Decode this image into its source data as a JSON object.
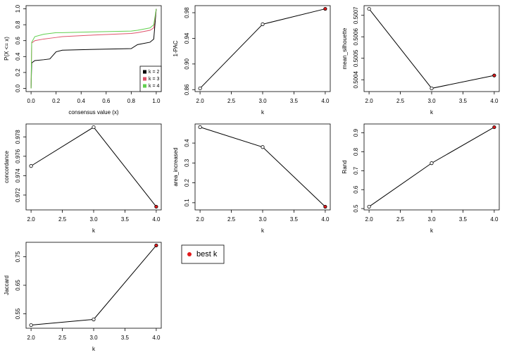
{
  "chart_data": [
    {
      "type": "line",
      "xlabel": "consensus value (x)",
      "ylabel": "P(X <= x)",
      "x": [
        0,
        0.005,
        0.03,
        0.1,
        0.15,
        0.2,
        0.25,
        0.5,
        0.8,
        0.85,
        0.95,
        0.98,
        1.0
      ],
      "series": [
        {
          "name": "k = 2",
          "color": "#000000",
          "values": [
            0,
            0.32,
            0.35,
            0.36,
            0.37,
            0.46,
            0.48,
            0.49,
            0.5,
            0.55,
            0.58,
            0.62,
            1.0
          ]
        },
        {
          "name": "k = 3",
          "color": "#df536b",
          "values": [
            0,
            0.57,
            0.6,
            0.62,
            0.63,
            0.64,
            0.65,
            0.67,
            0.69,
            0.7,
            0.73,
            0.76,
            1.0
          ]
        },
        {
          "name": "k = 4",
          "color": "#61d04f",
          "values": [
            0,
            0.58,
            0.65,
            0.68,
            0.69,
            0.7,
            0.7,
            0.71,
            0.72,
            0.73,
            0.76,
            0.8,
            1.0
          ]
        }
      ],
      "xlim": [
        -0.04,
        1.04
      ],
      "ylim": [
        -0.04,
        1.04
      ],
      "xticks": [
        {
          "value": 0,
          "label": "0.0"
        },
        0.2,
        0.4,
        0.6,
        0.8,
        {
          "value": 1,
          "label": "1.0"
        }
      ],
      "yticks": [
        {
          "value": 0,
          "label": "0.0"
        },
        0.2,
        0.4,
        0.6,
        0.8,
        {
          "value": 1,
          "label": "1.0"
        }
      ],
      "legend": "bottomright"
    },
    {
      "type": "line",
      "xlabel": "k",
      "ylabel": "1-PAC",
      "x": [
        2,
        3,
        4
      ],
      "values": [
        0.862,
        0.962,
        0.986
      ],
      "point_colors": [
        "#ffffff",
        "#ffffff",
        "#e31a1c"
      ],
      "color": "#000000",
      "xlim": [
        1.92,
        4.08
      ],
      "ylim": [
        0.857,
        0.991
      ],
      "xticks": [
        {
          "value": 2,
          "label": "2.0"
        },
        2.5,
        {
          "value": 3,
          "label": "3.0"
        },
        3.5,
        {
          "value": 4,
          "label": "4.0"
        }
      ],
      "yticks": [
        0.86,
        {
          "value": 0.9,
          "label": "0.90"
        },
        0.94,
        0.98
      ]
    },
    {
      "type": "line",
      "xlabel": "k",
      "ylabel": "mean_silhouette",
      "x": [
        2,
        3,
        4
      ],
      "values": [
        0.50073,
        0.50036,
        0.50042
      ],
      "point_colors": [
        "#ffffff",
        "#ffffff",
        "#e31a1c"
      ],
      "color": "#000000",
      "xlim": [
        1.92,
        4.08
      ],
      "ylim": [
        0.500345,
        0.500745
      ],
      "xticks": [
        {
          "value": 2,
          "label": "2.0"
        },
        2.5,
        {
          "value": 3,
          "label": "3.0"
        },
        3.5,
        {
          "value": 4,
          "label": "4.0"
        }
      ],
      "yticks": [
        0.5004,
        0.5005,
        0.5006,
        0.5007
      ]
    },
    {
      "type": "line",
      "xlabel": "k",
      "ylabel": "concordance",
      "x": [
        2,
        3,
        4
      ],
      "values": [
        0.975,
        0.979,
        0.9708
      ],
      "point_colors": [
        "#ffffff",
        "#ffffff",
        "#e31a1c"
      ],
      "color": "#000000",
      "xlim": [
        1.92,
        4.08
      ],
      "ylim": [
        0.97047,
        0.97933
      ],
      "xticks": [
        {
          "value": 2,
          "label": "2.0"
        },
        2.5,
        {
          "value": 3,
          "label": "3.0"
        },
        3.5,
        {
          "value": 4,
          "label": "4.0"
        }
      ],
      "yticks": [
        0.972,
        0.974,
        0.976,
        0.978
      ]
    },
    {
      "type": "line",
      "xlabel": "k",
      "ylabel": "area_increased",
      "x": [
        2,
        3,
        4
      ],
      "values": [
        0.48,
        0.38,
        0.08
      ],
      "point_colors": [
        "#ffffff",
        "#ffffff",
        "#e31a1c"
      ],
      "color": "#000000",
      "xlim": [
        1.92,
        4.08
      ],
      "ylim": [
        0.064,
        0.496
      ],
      "xticks": [
        {
          "value": 2,
          "label": "2.0"
        },
        2.5,
        {
          "value": 3,
          "label": "3.0"
        },
        3.5,
        {
          "value": 4,
          "label": "4.0"
        }
      ],
      "yticks": [
        0.1,
        0.2,
        0.3,
        0.4
      ]
    },
    {
      "type": "line",
      "xlabel": "k",
      "ylabel": "Rand",
      "x": [
        2,
        3,
        4
      ],
      "values": [
        0.51,
        0.74,
        0.93
      ],
      "point_colors": [
        "#ffffff",
        "#ffffff",
        "#e31a1c"
      ],
      "color": "#000000",
      "xlim": [
        1.92,
        4.08
      ],
      "ylim": [
        0.493,
        0.947
      ],
      "xticks": [
        {
          "value": 2,
          "label": "2.0"
        },
        2.5,
        {
          "value": 3,
          "label": "3.0"
        },
        3.5,
        {
          "value": 4,
          "label": "4.0"
        }
      ],
      "yticks": [
        0.5,
        0.6,
        0.7,
        0.8,
        0.9
      ]
    },
    {
      "type": "line",
      "xlabel": "k",
      "ylabel": "Jaccard",
      "x": [
        2,
        3,
        4
      ],
      "values": [
        0.51,
        0.53,
        0.79
      ],
      "point_colors": [
        "#ffffff",
        "#ffffff",
        "#e31a1c"
      ],
      "color": "#000000",
      "xlim": [
        1.92,
        4.08
      ],
      "ylim": [
        0.499,
        0.801
      ],
      "xticks": [
        {
          "value": 2,
          "label": "2.0"
        },
        2.5,
        {
          "value": 3,
          "label": "3.0"
        },
        3.5,
        {
          "value": 4,
          "label": "4.0"
        }
      ],
      "yticks": [
        0.55,
        0.65,
        0.75
      ]
    }
  ],
  "best_k_legend": {
    "label": "best k",
    "color": "#e31a1c"
  }
}
